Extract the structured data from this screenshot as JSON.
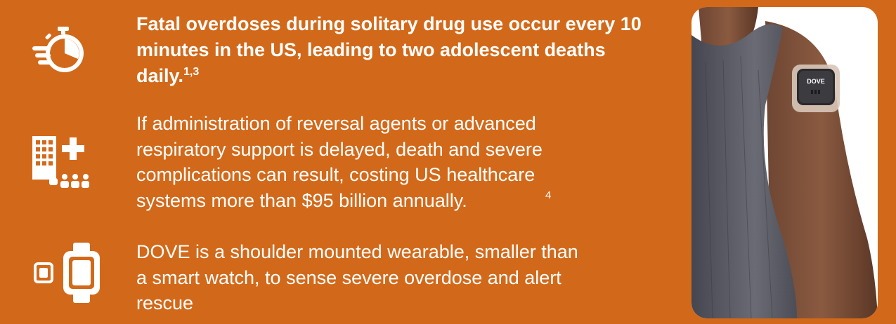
{
  "points": [
    {
      "icon": "stopwatch-icon",
      "text": "Fatal overdoses during solitary drug use occur every 10 minutes in the US, leading to two adolescent deaths daily.",
      "ref": "1,3"
    },
    {
      "icon": "hospital-icon",
      "text": "If administration of reversal agents or advanced respiratory support is delayed, death and severe complications can result, costing US healthcare systems more than $95 billion annually.",
      "ref": "4"
    },
    {
      "icon": "smartwatch-icon",
      "text": "DOVE is a shoulder mounted wearable, smaller than a smart watch, to sense severe overdose and alert rescue"
    }
  ],
  "device_label": "DOVE",
  "colors": {
    "background": "#d2691a",
    "text": "#ffffff"
  }
}
